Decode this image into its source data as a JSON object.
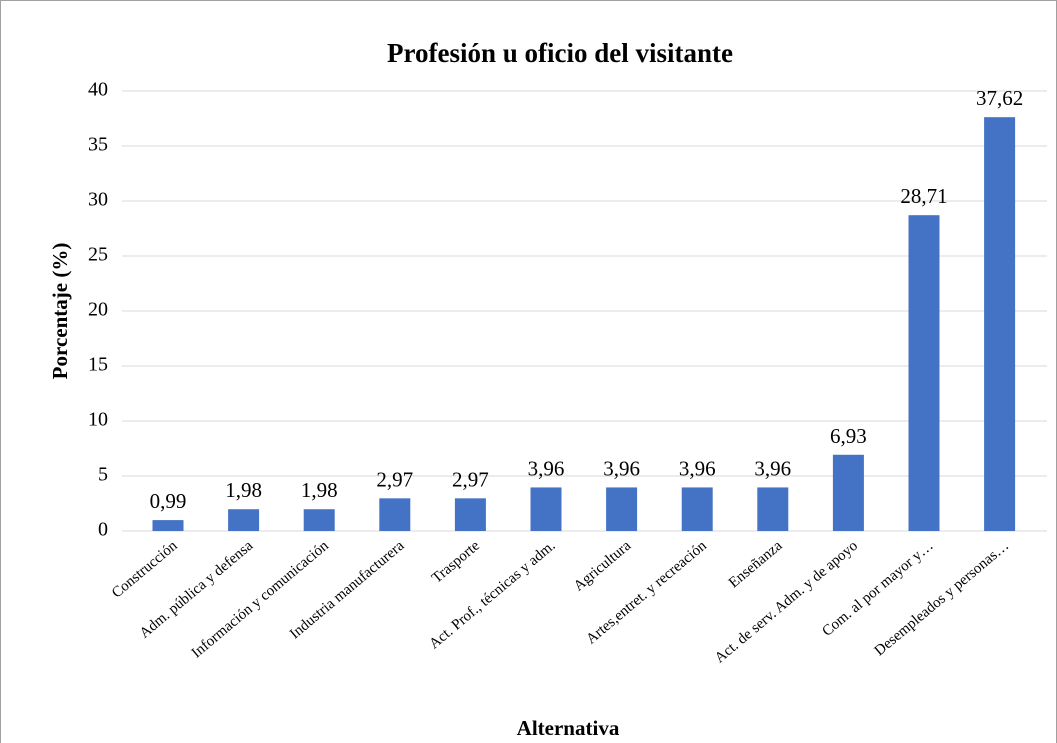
{
  "chart_data": {
    "type": "bar",
    "title": "Profesión u oficio del visitante",
    "x_label": "Alternativa",
    "y_label": "Porcentaje (%)",
    "categories": [
      "Construcción",
      "Adm. pública y defensa",
      "Información y comunicación",
      "Industria manufacturera",
      "Trasporte",
      "Act. Prof., técnicas y adm.",
      "Agricultura",
      "Artes,entret. y recreación",
      "Enseñanza",
      "Act. de serv. Adm. y de apoyo",
      "Com. al por mayor y…",
      "Desempleados y personas…"
    ],
    "values": [
      0.99,
      1.98,
      1.98,
      2.97,
      2.97,
      3.96,
      3.96,
      3.96,
      3.96,
      6.93,
      28.71,
      37.62
    ],
    "value_labels": [
      "0,99",
      "1,98",
      "1,98",
      "2,97",
      "2,97",
      "3,96",
      "3,96",
      "3,96",
      "3,96",
      "6,93",
      "28,71",
      "37,62"
    ],
    "color": "#4472c4",
    "ylim": [
      0,
      40
    ],
    "yticks": [
      0,
      5,
      10,
      15,
      20,
      25,
      30,
      35,
      40
    ],
    "grid": true
  }
}
